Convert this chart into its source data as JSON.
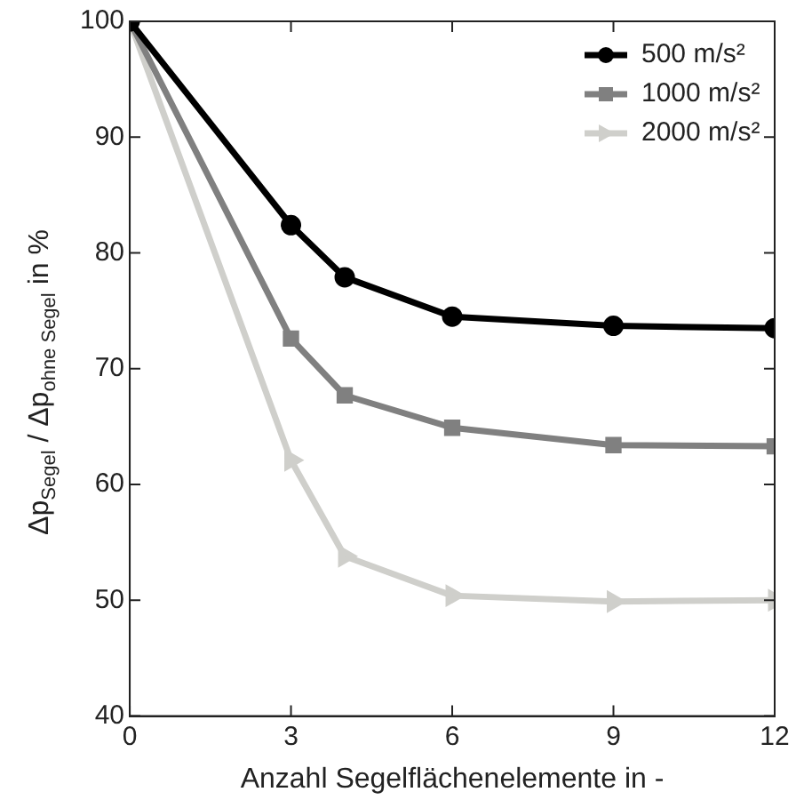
{
  "chart_data": {
    "type": "line",
    "xlabel": "Anzahl Segelflächenelemente in -",
    "ylabel": "Δp$_{Segel}$ / Δp$_{ohne Segel}$ in %",
    "x": [
      0,
      3,
      4,
      6,
      9,
      12
    ],
    "xlim": [
      0,
      12
    ],
    "xticks": [
      0,
      3,
      6,
      9,
      12
    ],
    "ylim": [
      40,
      100
    ],
    "yticks": [
      40,
      50,
      60,
      70,
      80,
      90,
      100
    ],
    "series": [
      {
        "name": "500 m/s²",
        "color": "#000000",
        "marker": "circle",
        "values": [
          100,
          82.4,
          77.9,
          74.5,
          73.7,
          73.5
        ]
      },
      {
        "name": "1000 m/s²",
        "color": "#808080",
        "marker": "square",
        "values": [
          100,
          72.6,
          67.7,
          64.9,
          63.4,
          63.3
        ]
      },
      {
        "name": "2000 m/s²",
        "color": "#cfcfcb",
        "marker": "triangle",
        "values": [
          100,
          62.1,
          53.8,
          50.4,
          49.9,
          50
        ]
      }
    ],
    "grid": false,
    "legend": "top right",
    "line_style": "solid"
  }
}
